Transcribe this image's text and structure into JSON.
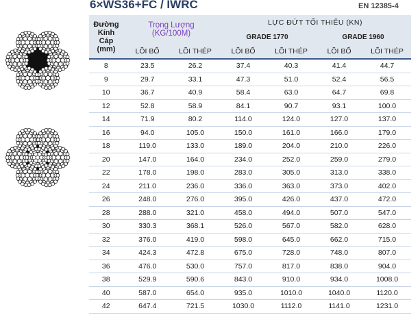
{
  "header": {
    "title": "6×WS36+FC / IWRC",
    "standard": "EN 12385-4"
  },
  "table": {
    "columns": {
      "diameter": [
        "Đường",
        "Kính",
        "Cáp",
        "(mm)"
      ],
      "weight": [
        "Trọng Lượng",
        "(KG/100M)"
      ],
      "force": "LỰC ĐỨT TỐI THIỂU (KN)",
      "grades": [
        "GRADE 1770",
        "GRADE 1960"
      ],
      "sub": [
        "LÕI BỐ",
        "LÕI THÉP",
        "LÕI BỐ",
        "LÕI THÉP",
        "LÕI BỐ",
        "LÕI THÉP"
      ]
    },
    "rows": [
      [
        "8",
        "23.5",
        "26.2",
        "37.4",
        "40.3",
        "41.4",
        "44.7"
      ],
      [
        "9",
        "29.7",
        "33.1",
        "47.3",
        "51.0",
        "52.4",
        "56.5"
      ],
      [
        "10",
        "36.7",
        "40.9",
        "58.4",
        "63.0",
        "64.7",
        "69.8"
      ],
      [
        "12",
        "52.8",
        "58.9",
        "84.1",
        "90.7",
        "93.1",
        "100.0"
      ],
      [
        "14",
        "71.9",
        "80.2",
        "114.0",
        "124.0",
        "127.0",
        "137.0"
      ],
      [
        "16",
        "94.0",
        "105.0",
        "150.0",
        "161.0",
        "166.0",
        "179.0"
      ],
      [
        "18",
        "119.0",
        "133.0",
        "189.0",
        "204.0",
        "210.0",
        "226.0"
      ],
      [
        "20",
        "147.0",
        "164.0",
        "234.0",
        "252.0",
        "259.0",
        "279.0"
      ],
      [
        "22",
        "178.0",
        "198.0",
        "283.0",
        "305.0",
        "313.0",
        "338.0"
      ],
      [
        "24",
        "211.0",
        "236.0",
        "336.0",
        "363.0",
        "373.0",
        "402.0"
      ],
      [
        "26",
        "248.0",
        "276.0",
        "395.0",
        "426.0",
        "437.0",
        "472.0"
      ],
      [
        "28",
        "288.0",
        "321.0",
        "458.0",
        "494.0",
        "507.0",
        "547.0"
      ],
      [
        "30",
        "330.3",
        "368.1",
        "526.0",
        "567.0",
        "582.0",
        "628.0"
      ],
      [
        "32",
        "376.0",
        "419.0",
        "598.0",
        "645.0",
        "662.0",
        "715.0"
      ],
      [
        "34",
        "424.3",
        "472.8",
        "675.0",
        "728.0",
        "748.0",
        "807.0"
      ],
      [
        "36",
        "476.0",
        "530.0",
        "757.0",
        "817.0",
        "838.0",
        "904.0"
      ],
      [
        "38",
        "529.9",
        "590.6",
        "843.0",
        "910.0",
        "934.0",
        "1008.0"
      ],
      [
        "40",
        "587.0",
        "654.0",
        "935.0",
        "1010.0",
        "1040.0",
        "1120.0"
      ],
      [
        "42",
        "647.4",
        "721.5",
        "1030.0",
        "1112.0",
        "1141.0",
        "1231.0"
      ]
    ]
  }
}
